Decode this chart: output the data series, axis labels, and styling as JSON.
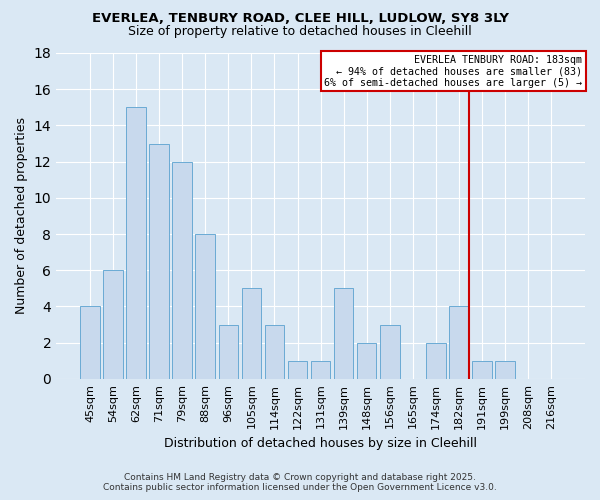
{
  "title1": "EVERLEA, TENBURY ROAD, CLEE HILL, LUDLOW, SY8 3LY",
  "title2": "Size of property relative to detached houses in Cleehill",
  "xlabel": "Distribution of detached houses by size in Cleehill",
  "ylabel": "Number of detached properties",
  "categories": [
    "45sqm",
    "54sqm",
    "62sqm",
    "71sqm",
    "79sqm",
    "88sqm",
    "96sqm",
    "105sqm",
    "114sqm",
    "122sqm",
    "131sqm",
    "139sqm",
    "148sqm",
    "156sqm",
    "165sqm",
    "174sqm",
    "182sqm",
    "191sqm",
    "199sqm",
    "208sqm",
    "216sqm"
  ],
  "values": [
    4,
    6,
    15,
    13,
    12,
    8,
    3,
    5,
    3,
    1,
    1,
    5,
    2,
    3,
    0,
    2,
    4,
    1,
    1,
    0,
    0
  ],
  "bar_color": "#c8d9ed",
  "bar_edge_color": "#6aaad4",
  "background_color": "#dae8f4",
  "grid_color": "#ffffff",
  "red_line_index": 16,
  "annotation_title": "EVERLEA TENBURY ROAD: 183sqm",
  "annotation_line1": "← 94% of detached houses are smaller (83)",
  "annotation_line2": "6% of semi-detached houses are larger (5) →",
  "annotation_box_color": "#ffffff",
  "annotation_border_color": "#cc0000",
  "red_line_color": "#cc0000",
  "footer_line1": "Contains HM Land Registry data © Crown copyright and database right 2025.",
  "footer_line2": "Contains public sector information licensed under the Open Government Licence v3.0.",
  "ylim": [
    0,
    18
  ],
  "yticks": [
    0,
    2,
    4,
    6,
    8,
    10,
    12,
    14,
    16,
    18
  ]
}
